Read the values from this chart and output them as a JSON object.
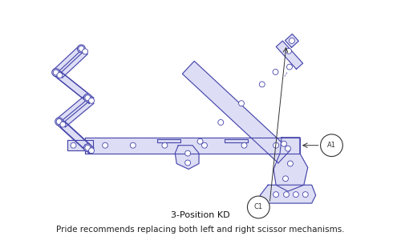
{
  "title": "3-Position KD",
  "subtitle": "Pride recommends replacing both left and right scissor mechanisms.",
  "line_color": "#4444aa",
  "fill_color": "#ddddf5",
  "bg_color": "#ffffff",
  "anno_color": "#333333",
  "title_fontsize": 8,
  "subtitle_fontsize": 7.5,
  "label_A1": "A1",
  "label_C1": "C1"
}
